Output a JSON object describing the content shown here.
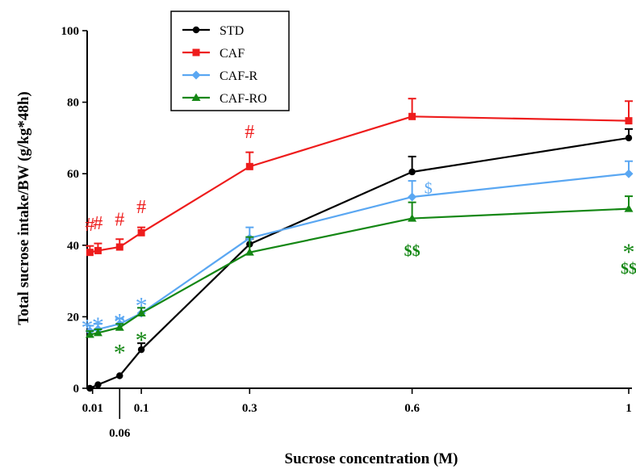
{
  "chart_data": {
    "type": "line",
    "xlabel": "Sucrose concentration (M)",
    "ylabel": "Total sucrose intake/BW (g/kg*48h)",
    "xlim": [
      0,
      1
    ],
    "ylim": [
      0,
      100
    ],
    "y_ticks": [
      0,
      20,
      40,
      60,
      80,
      100
    ],
    "x_ticks": [
      {
        "value": 0.01,
        "label": "0.01"
      },
      {
        "value": 0.06,
        "label": "0.06"
      },
      {
        "value": 0.1,
        "label": "0.1"
      },
      {
        "value": 0.3,
        "label": "0.3"
      },
      {
        "value": 0.6,
        "label": "0.6"
      },
      {
        "value": 1,
        "label": "1"
      }
    ],
    "legend_position": "top-left",
    "series": [
      {
        "name": "STD",
        "color": "#000000",
        "marker": "circle",
        "x": [
          0.005,
          0.02,
          0.06,
          0.1,
          0.3,
          0.6,
          1
        ],
        "y": [
          0,
          1,
          3.5,
          10.8,
          40.3,
          60.5,
          70
        ],
        "err": [
          0,
          0,
          0,
          1.8,
          1.5,
          4.3,
          2.5
        ]
      },
      {
        "name": "CAF",
        "color": "#ee1c1c",
        "marker": "square",
        "x": [
          0.005,
          0.02,
          0.06,
          0.1,
          0.3,
          0.6,
          1
        ],
        "y": [
          38,
          38.5,
          39.5,
          43.5,
          62,
          76,
          74.8
        ],
        "err": [
          1.8,
          2,
          2.2,
          1.5,
          4,
          5,
          5.5
        ]
      },
      {
        "name": "CAF-R",
        "color": "#5aa7f2",
        "marker": "diamond",
        "x": [
          0.005,
          0.02,
          0.06,
          0.1,
          0.3,
          0.6,
          1
        ],
        "y": [
          16,
          16.5,
          18,
          21,
          42,
          53.5,
          60
        ],
        "err": [
          1.5,
          1.5,
          1.5,
          1.5,
          3,
          4.5,
          3.5
        ]
      },
      {
        "name": "CAF-RO",
        "color": "#148714",
        "marker": "triangle",
        "x": [
          0.005,
          0.02,
          0.06,
          0.1,
          0.3,
          0.6,
          1
        ],
        "y": [
          15,
          15.5,
          17,
          21,
          38,
          47.5,
          50.2
        ],
        "err": [
          1,
          1,
          1,
          1.5,
          4.3,
          4.5,
          3.5
        ]
      }
    ],
    "annotations": [
      {
        "text": "#",
        "x": 0.005,
        "y": 44,
        "color": "#ee1c1c"
      },
      {
        "text": "#",
        "x": 0.02,
        "y": 44.5,
        "color": "#ee1c1c"
      },
      {
        "text": "#",
        "x": 0.06,
        "y": 45.5,
        "color": "#ee1c1c"
      },
      {
        "text": "#",
        "x": 0.1,
        "y": 49,
        "color": "#ee1c1c"
      },
      {
        "text": "#",
        "x": 0.3,
        "y": 70,
        "color": "#ee1c1c"
      },
      {
        "text": "*",
        "x": 0.0,
        "y": 18,
        "color": "#5aa7f2"
      },
      {
        "text": "*",
        "x": 0.02,
        "y": 18.5,
        "color": "#5aa7f2"
      },
      {
        "text": "*",
        "x": 0.06,
        "y": 19.5,
        "color": "#5aa7f2"
      },
      {
        "text": "*",
        "x": 0.1,
        "y": 24,
        "color": "#5aa7f2"
      },
      {
        "text": "$",
        "x": 0.63,
        "y": 54.5,
        "color": "#5aa7f2"
      },
      {
        "text": "*",
        "x": 0.06,
        "y": 11,
        "color": "#148714"
      },
      {
        "text": "*",
        "x": 0.1,
        "y": 14.5,
        "color": "#148714"
      },
      {
        "text": "$$",
        "x": 0.6,
        "y": 37,
        "color": "#148714"
      },
      {
        "text": "*",
        "x": 1.0,
        "y": 39,
        "color": "#148714"
      },
      {
        "text": "$$",
        "x": 1.0,
        "y": 32,
        "color": "#148714"
      }
    ]
  }
}
